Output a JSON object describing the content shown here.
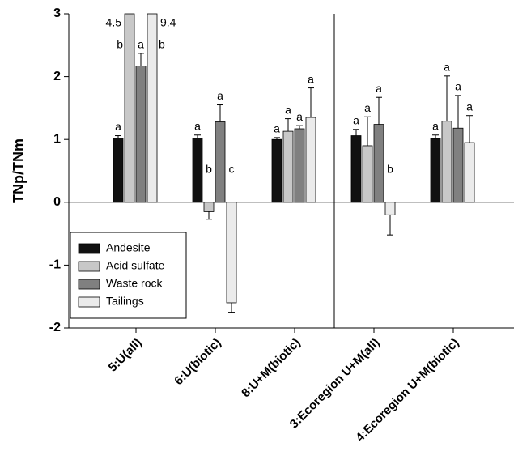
{
  "chart_data": {
    "type": "bar",
    "ylabel": "TNp/TNm",
    "categories": [
      "5:U(all)",
      "6:U(biotic)",
      "8:U+M(biotic)",
      "3:Ecoregion U+M(all)",
      "4:Ecoregion U+M(biotic)"
    ],
    "series": [
      {
        "name": "Andesite",
        "color": "#111111",
        "values": [
          1.02,
          1.02,
          1.0,
          1.06,
          1.01
        ],
        "errors": [
          0.04,
          0.05,
          0.03,
          0.1,
          0.06
        ],
        "letters": [
          "a",
          "a",
          "a",
          "a",
          "a"
        ]
      },
      {
        "name": "Acid sulfate",
        "color": "#c8c8c8",
        "values": [
          4.5,
          -0.15,
          1.13,
          0.9,
          1.29
        ],
        "errors": [
          null,
          0.12,
          0.2,
          0.46,
          0.72
        ],
        "letters": [
          "b",
          "b",
          "a",
          "a",
          "a"
        ],
        "value_labels": [
          "4.5",
          null,
          null,
          null,
          null
        ]
      },
      {
        "name": "Waste rock",
        "color": "#808080",
        "values": [
          2.17,
          1.28,
          1.17,
          1.24,
          1.18
        ],
        "errors": [
          0.2,
          0.27,
          0.05,
          0.43,
          0.52
        ],
        "letters": [
          "a",
          "a",
          "a",
          "a",
          "a"
        ]
      },
      {
        "name": "Tailings",
        "color": "#ebebeb",
        "values": [
          9.4,
          -1.6,
          1.35,
          -0.2,
          0.95
        ],
        "errors": [
          null,
          0.15,
          0.47,
          0.32,
          0.43
        ],
        "letters": [
          "b",
          "c",
          "a",
          "b",
          "a"
        ],
        "value_labels": [
          "9.4",
          null,
          null,
          null,
          null
        ]
      }
    ],
    "ylim": [
      -2,
      3
    ],
    "yticks": [
      -2,
      -1,
      0,
      1,
      2,
      3
    ],
    "legend": "lower left"
  }
}
